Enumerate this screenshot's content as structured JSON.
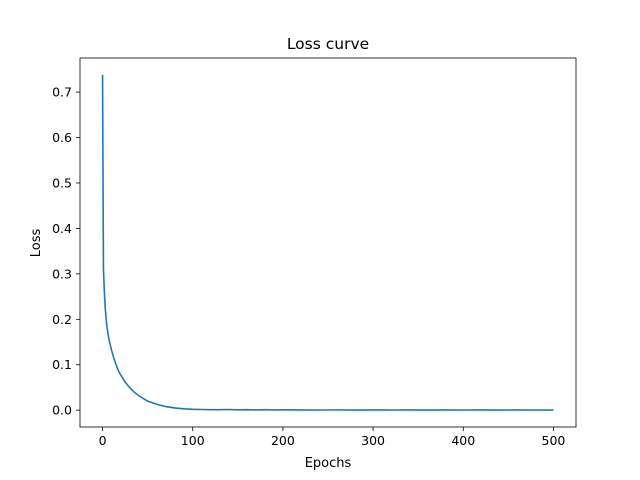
{
  "chart_data": {
    "type": "line",
    "title": "Loss curve",
    "xlabel": "Epochs",
    "ylabel": "Loss",
    "xlim": [
      -25,
      525
    ],
    "ylim": [
      -0.037,
      0.775
    ],
    "xticks": [
      0,
      100,
      200,
      300,
      400,
      500
    ],
    "yticks": [
      0.0,
      0.1,
      0.2,
      0.3,
      0.4,
      0.5,
      0.6,
      0.7
    ],
    "ytick_labels": [
      "0.0",
      "0.1",
      "0.2",
      "0.3",
      "0.4",
      "0.5",
      "0.6",
      "0.7"
    ],
    "grid": false,
    "series": [
      {
        "color": "#1f77b4",
        "x": [
          0,
          1,
          2,
          3,
          4,
          5,
          6,
          8,
          10,
          12,
          15,
          18,
          20,
          25,
          30,
          35,
          40,
          50,
          60,
          70,
          80,
          90,
          100,
          110,
          120,
          130,
          140,
          150,
          160,
          170,
          180,
          190,
          200,
          220,
          240,
          260,
          280,
          300,
          320,
          340,
          360,
          380,
          400,
          420,
          440,
          460,
          480,
          500
        ],
        "y": [
          0.738,
          0.31,
          0.26,
          0.225,
          0.2,
          0.182,
          0.168,
          0.148,
          0.132,
          0.118,
          0.1,
          0.085,
          0.078,
          0.062,
          0.05,
          0.04,
          0.032,
          0.02,
          0.013,
          0.008,
          0.005,
          0.003,
          0.002,
          0.0015,
          0.0012,
          0.001,
          0.0015,
          0.0008,
          0.0012,
          0.0006,
          0.001,
          0.0005,
          0.0008,
          0.0006,
          0.0004,
          0.0007,
          0.0003,
          0.0005,
          0.0004,
          0.0006,
          0.0003,
          0.0005,
          0.0004,
          0.0006,
          0.0003,
          0.0005,
          0.0004,
          0.0003
        ]
      }
    ]
  }
}
